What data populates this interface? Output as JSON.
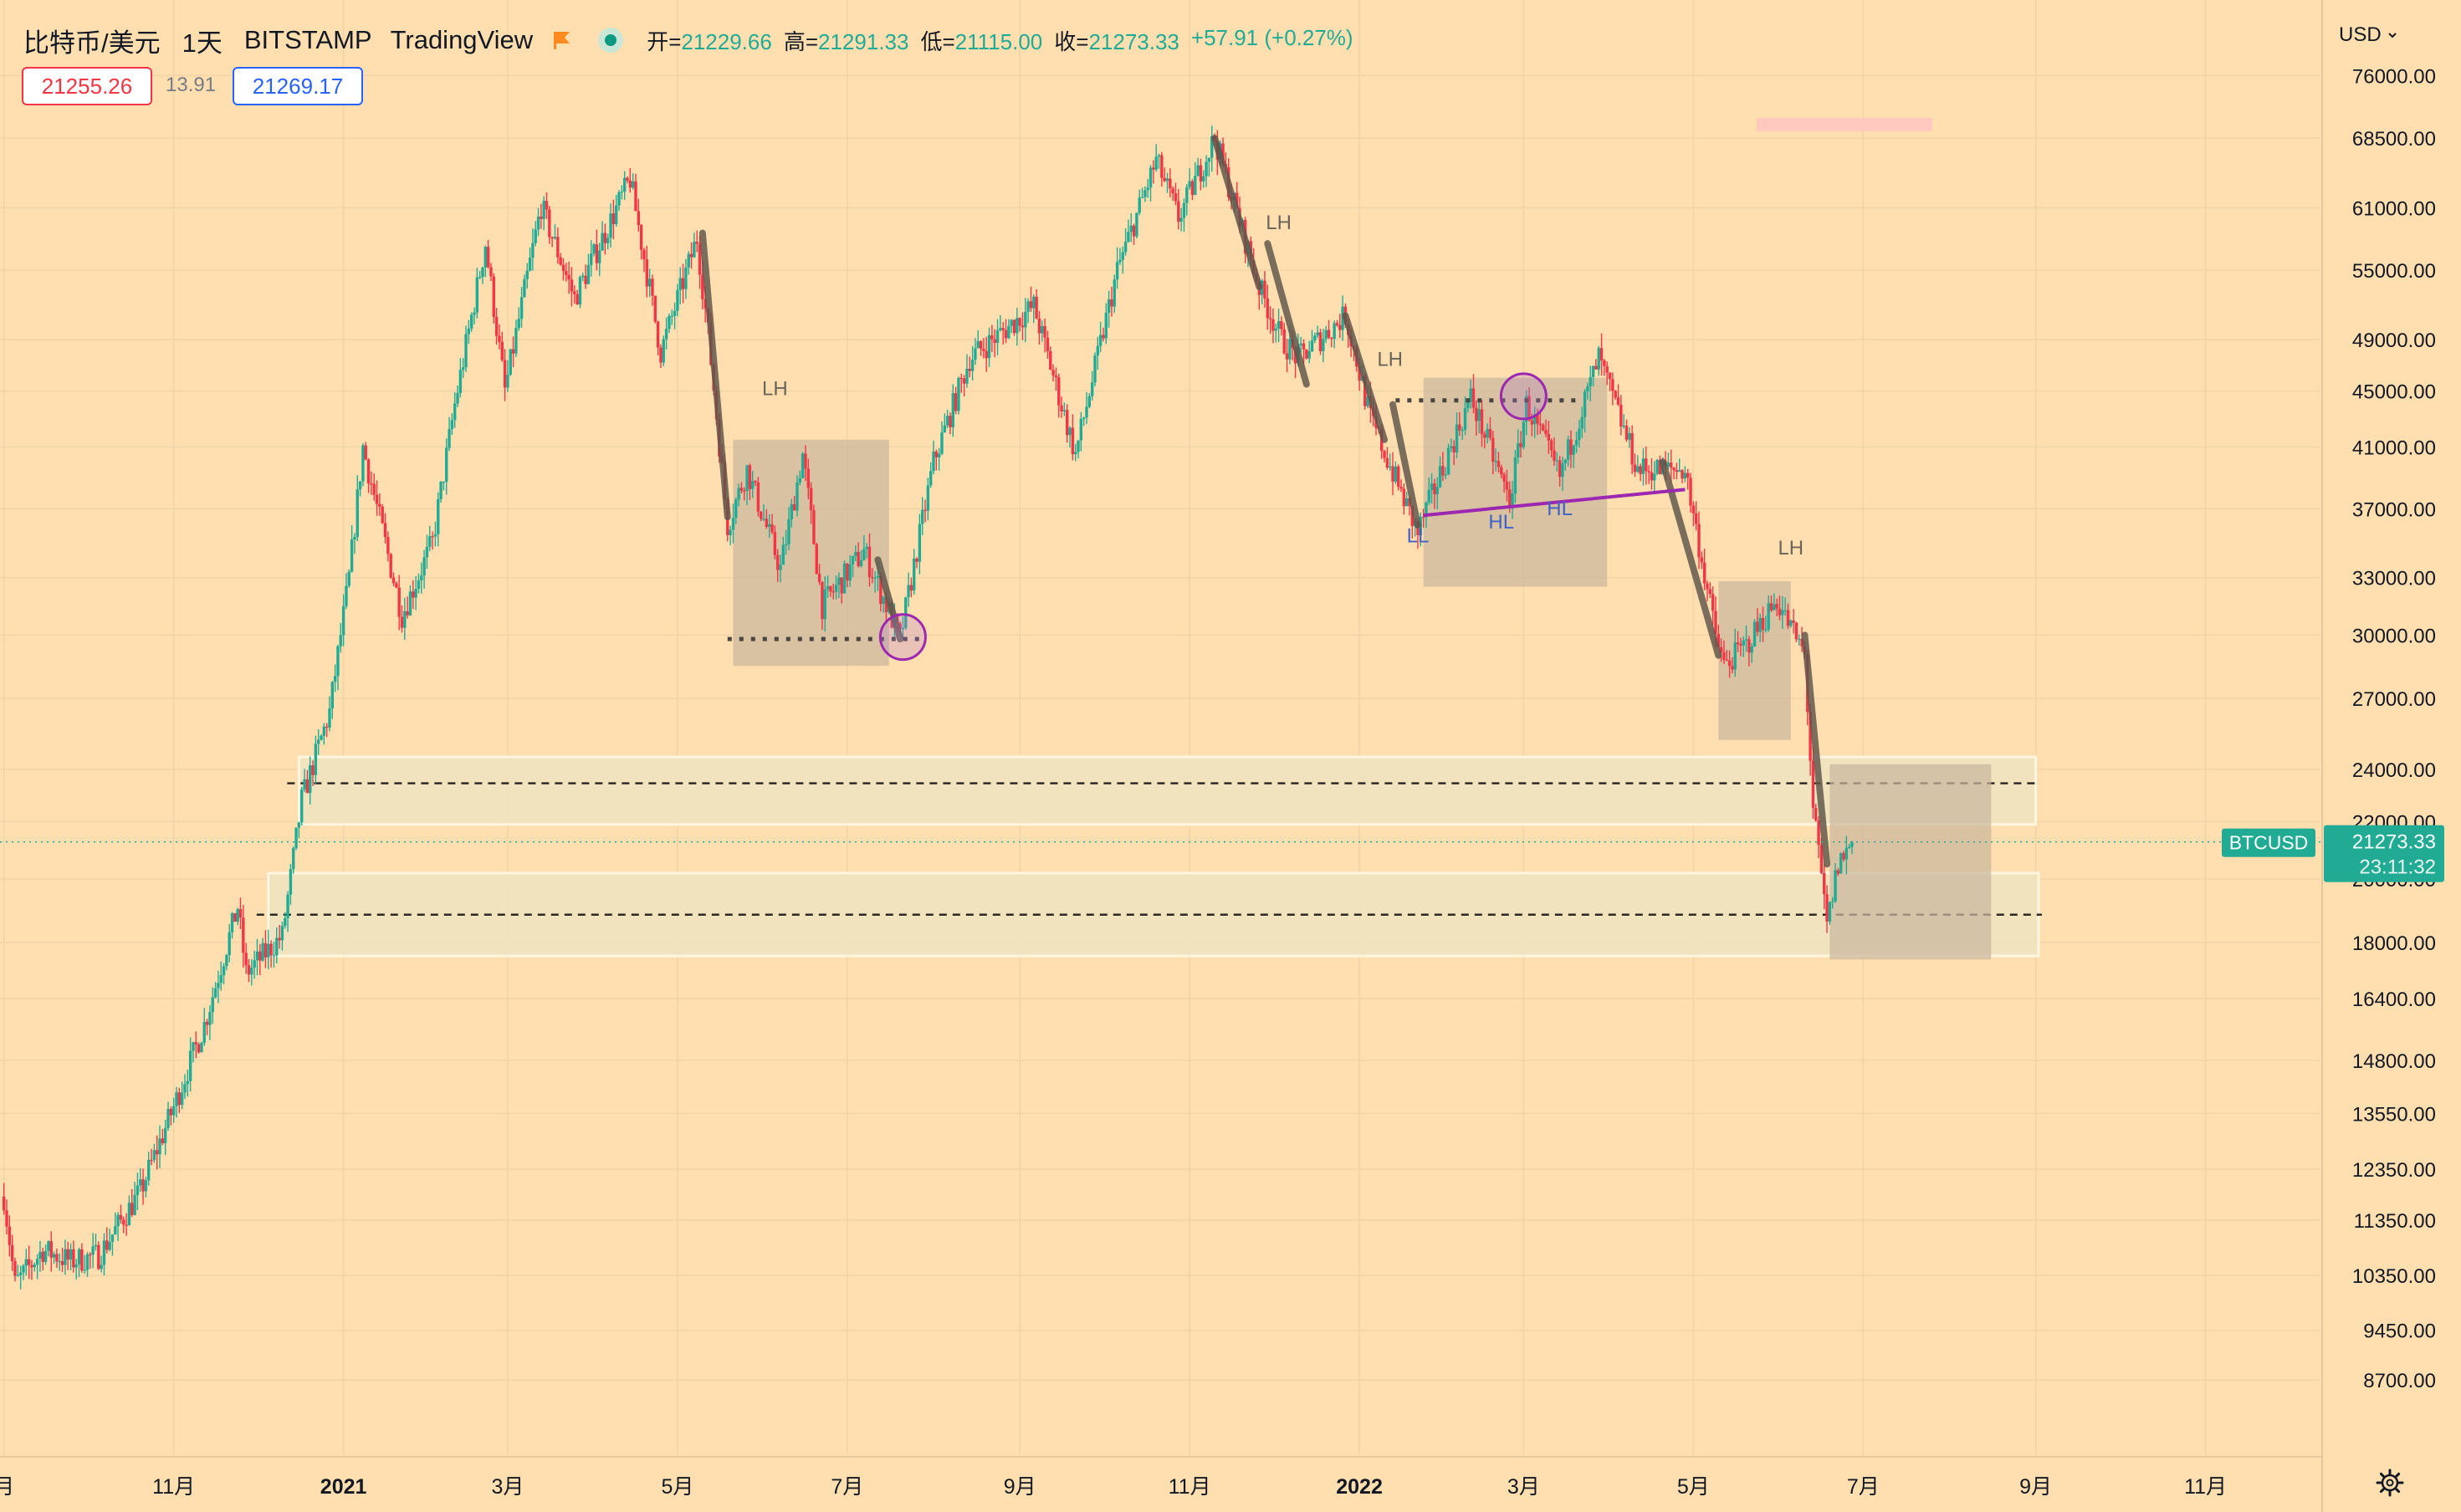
{
  "header": {
    "symbol": "比特币/美元",
    "timeframe": "1天",
    "exchange": "BITSTAMP",
    "source": "TradingView",
    "ohlc": {
      "open_label": "开=",
      "open": "21229.66",
      "high_label": "高=",
      "high": "21291.33",
      "low_label": "低=",
      "low": "21115.00",
      "close_label": "收=",
      "close": "21273.33",
      "change": "+57.91 (+0.27%)"
    },
    "bid": "21255.26",
    "spread": "13.91",
    "ask": "21269.17",
    "currency": "USD"
  },
  "price_scale": {
    "ticks": [
      76000,
      68500,
      61000,
      55000,
      49000,
      45000,
      41000,
      37000,
      33000,
      30000,
      27000,
      24000,
      22000,
      20000,
      18000,
      16400,
      14800,
      13550,
      12350,
      11350,
      10350,
      9450,
      8700
    ],
    "tick_labels": [
      "76000.00",
      "68500.00",
      "61000.00",
      "55000.00",
      "49000.00",
      "45000.00",
      "41000.00",
      "37000.00",
      "33000.00",
      "30000.00",
      "27000.00",
      "24000.00",
      "22000.00",
      "20000.00",
      "18000.00",
      "16400.00",
      "14800.00",
      "13550.00",
      "12350.00",
      "11350.00",
      "10350.00",
      "9450.00",
      "8700.00"
    ],
    "symbol_tag": "BTCUSD",
    "last_price": "21273.33",
    "countdown": "23:11:32"
  },
  "time_scale": {
    "labels": [
      {
        "date": "2020-09-01",
        "text": "月"
      },
      {
        "date": "2020-11-01",
        "text": "11月"
      },
      {
        "date": "2021-01-01",
        "text": "2021",
        "bold": true
      },
      {
        "date": "2021-03-01",
        "text": "3月"
      },
      {
        "date": "2021-05-01",
        "text": "5月"
      },
      {
        "date": "2021-07-01",
        "text": "7月"
      },
      {
        "date": "2021-09-01",
        "text": "9月"
      },
      {
        "date": "2021-11-01",
        "text": "11月"
      },
      {
        "date": "2022-01-01",
        "text": "2022",
        "bold": true
      },
      {
        "date": "2022-03-01",
        "text": "3月"
      },
      {
        "date": "2022-05-01",
        "text": "5月"
      },
      {
        "date": "2022-07-01",
        "text": "7月"
      },
      {
        "date": "2022-09-01",
        "text": "9月"
      },
      {
        "date": "2022-11-01",
        "text": "11月"
      }
    ]
  },
  "chart_data": {
    "type": "candlestick",
    "scale": "log",
    "ylim": [
      8000,
      82000
    ],
    "xlim": [
      "2020-09-01",
      "2023-01-01"
    ],
    "grid": true,
    "colors": {
      "background": "#ffdfb0",
      "up": "#22ab94",
      "down": "#f23645",
      "swing_line": "#5d554a",
      "zone_fill": "#c9b79c",
      "band_fill": "#efe3c0",
      "band_stroke": "#fff6e0",
      "trendline": "#9c27b0",
      "label_blue": "#3f63c9",
      "label_gray": "#6b6459",
      "price_tag": "#22ab94"
    },
    "price_path": [
      [
        "2020-09-01",
        11800
      ],
      [
        "2020-09-05",
        10200
      ],
      [
        "2020-09-15",
        10800
      ],
      [
        "2020-09-25",
        10600
      ],
      [
        "2020-10-05",
        10700
      ],
      [
        "2020-10-20",
        11900
      ],
      [
        "2020-11-01",
        13700
      ],
      [
        "2020-11-12",
        15700
      ],
      [
        "2020-11-24",
        19100
      ],
      [
        "2020-11-27",
        17100
      ],
      [
        "2020-12-10",
        18200
      ],
      [
        "2020-12-17",
        22800
      ],
      [
        "2020-12-27",
        26400
      ],
      [
        "2021-01-03",
        33000
      ],
      [
        "2021-01-08",
        41000
      ],
      [
        "2021-01-22",
        31000
      ],
      [
        "2021-02-02",
        35000
      ],
      [
        "2021-02-10",
        44000
      ],
      [
        "2021-02-21",
        57500
      ],
      [
        "2021-02-28",
        45000
      ],
      [
        "2021-03-13",
        61200
      ],
      [
        "2021-03-25",
        52500
      ],
      [
        "2021-04-14",
        64000
      ],
      [
        "2021-04-25",
        48000
      ],
      [
        "2021-05-08",
        58000
      ],
      [
        "2021-05-12",
        49500
      ],
      [
        "2021-05-19",
        36000
      ],
      [
        "2021-05-26",
        39500
      ],
      [
        "2021-06-07",
        33500
      ],
      [
        "2021-06-15",
        40500
      ],
      [
        "2021-06-22",
        31500
      ],
      [
        "2021-07-07",
        34500
      ],
      [
        "2021-07-20",
        29800
      ],
      [
        "2021-08-01",
        40000
      ],
      [
        "2021-08-14",
        47500
      ],
      [
        "2021-09-06",
        51800
      ],
      [
        "2021-09-21",
        40500
      ],
      [
        "2021-10-06",
        55000
      ],
      [
        "2021-10-20",
        66000
      ],
      [
        "2021-10-28",
        60000
      ],
      [
        "2021-11-10",
        68500
      ],
      [
        "2021-11-26",
        53500
      ],
      [
        "2021-12-04",
        49000
      ],
      [
        "2021-12-10",
        47500
      ],
      [
        "2021-12-27",
        51000
      ],
      [
        "2022-01-05",
        43000
      ],
      [
        "2022-01-22",
        35500
      ],
      [
        "2022-01-24",
        36500
      ],
      [
        "2022-02-10",
        44500
      ],
      [
        "2022-02-24",
        37500
      ],
      [
        "2022-03-02",
        44000
      ],
      [
        "2022-03-14",
        39000
      ],
      [
        "2022-03-28",
        47500
      ],
      [
        "2022-04-11",
        39500
      ],
      [
        "2022-04-28",
        39500
      ],
      [
        "2022-05-09",
        30000
      ],
      [
        "2022-05-12",
        28500
      ],
      [
        "2022-05-20",
        29500
      ],
      [
        "2022-05-31",
        31800
      ],
      [
        "2022-06-10",
        29000
      ],
      [
        "2022-06-13",
        22500
      ],
      [
        "2022-06-18",
        18500
      ],
      [
        "2022-06-22",
        20500
      ],
      [
        "2022-06-27",
        21273
      ]
    ],
    "swing_lines": [
      [
        [
          "2021-05-10",
          58500
        ],
        [
          "2021-05-19",
          36500
        ]
      ],
      [
        [
          "2021-07-12",
          34000
        ],
        [
          "2021-07-20",
          29800
        ]
      ],
      [
        [
          "2021-11-10",
          68500
        ],
        [
          "2021-11-26",
          53500
        ]
      ],
      [
        [
          "2021-11-29",
          57500
        ],
        [
          "2021-12-13",
          45500
        ]
      ],
      [
        [
          "2021-12-27",
          51000
        ],
        [
          "2022-01-10",
          41500
        ]
      ],
      [
        [
          "2022-01-13",
          44000
        ],
        [
          "2022-01-22",
          36000
        ]
      ],
      [
        [
          "2022-04-20",
          40000
        ],
        [
          "2022-05-10",
          29000
        ]
      ],
      [
        [
          "2022-06-10",
          30000
        ],
        [
          "2022-06-18",
          20500
        ]
      ]
    ],
    "zones": [
      {
        "from": "2021-05-21",
        "to": "2021-07-16",
        "high": 41500,
        "low": 28500
      },
      {
        "from": "2022-01-24",
        "to": "2022-03-31",
        "high": 46000,
        "low": 32500
      },
      {
        "from": "2022-05-10",
        "to": "2022-06-05",
        "high": 32800,
        "low": 25200
      },
      {
        "from": "2022-06-19",
        "to": "2022-08-16",
        "high": 24200,
        "low": 17500
      }
    ],
    "bands": [
      {
        "from": "2020-12-16",
        "to": "2022-09-01",
        "high": 24500,
        "low": 21900,
        "line": 23450
      },
      {
        "from": "2020-12-05",
        "to": "2022-09-02",
        "high": 20200,
        "low": 17600,
        "line": 18850
      }
    ],
    "dotted_levels": [
      {
        "from": "2021-05-19",
        "to": "2021-07-29",
        "price": 29800
      },
      {
        "from": "2022-01-14",
        "to": "2022-03-21",
        "price": 44300
      }
    ],
    "circles": [
      {
        "date": "2021-07-21",
        "price": 29900
      },
      {
        "date": "2022-03-01",
        "price": 44600
      }
    ],
    "trendline": [
      [
        "2022-01-24",
        36600
      ],
      [
        "2022-04-28",
        38200
      ]
    ],
    "annotations": [
      {
        "text": "LH",
        "date": "2021-06-05",
        "price": 44700,
        "color": "gray"
      },
      {
        "text": "LH",
        "date": "2021-12-03",
        "price": 58900,
        "color": "gray"
      },
      {
        "text": "LH",
        "date": "2022-01-12",
        "price": 46900,
        "color": "gray"
      },
      {
        "text": "LH",
        "date": "2022-06-05",
        "price": 34300,
        "color": "gray"
      },
      {
        "text": "LL",
        "date": "2022-01-22",
        "price": 35000,
        "color": "blue"
      },
      {
        "text": "HL",
        "date": "2022-02-21",
        "price": 35800,
        "color": "blue"
      },
      {
        "text": "HL",
        "date": "2022-03-14",
        "price": 36600,
        "color": "blue"
      }
    ]
  }
}
